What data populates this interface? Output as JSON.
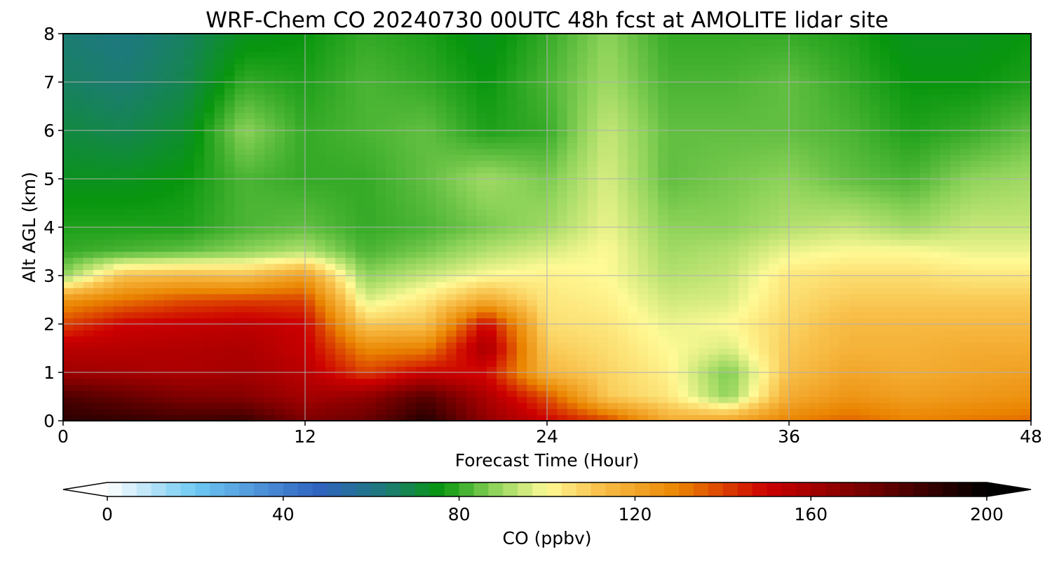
{
  "chart_data": {
    "type": "heatmap",
    "title": "WRF-Chem CO  20240730 00UTC 48h fcst at AMOLITE lidar site",
    "xlabel": "Forecast Time (Hour)",
    "ylabel": "Alt AGL (km)",
    "xlim": [
      0,
      48
    ],
    "ylim": [
      0,
      8
    ],
    "x_ticks": [
      "0",
      "12",
      "24",
      "36",
      "48"
    ],
    "y_ticks": [
      "0",
      "1",
      "2",
      "3",
      "4",
      "5",
      "6",
      "7",
      "8"
    ],
    "grid": true,
    "colorbar": {
      "label": "CO  (ppbv)",
      "range": [
        0,
        200
      ],
      "ticks": [
        "0",
        "40",
        "80",
        "120",
        "160",
        "200"
      ],
      "extend": "both",
      "stops": [
        {
          "v": 0,
          "color": "#ffffff"
        },
        {
          "v": 20,
          "color": "#6ec8f2"
        },
        {
          "v": 48,
          "color": "#2f62c0"
        },
        {
          "v": 63,
          "color": "#1d7a7a"
        },
        {
          "v": 76,
          "color": "#08960e"
        },
        {
          "v": 88,
          "color": "#8ed35a"
        },
        {
          "v": 100,
          "color": "#fffa96"
        },
        {
          "v": 112,
          "color": "#f8c04a"
        },
        {
          "v": 130,
          "color": "#ea8400"
        },
        {
          "v": 150,
          "color": "#cd0000"
        },
        {
          "v": 175,
          "color": "#6a0000"
        },
        {
          "v": 200,
          "color": "#000000"
        }
      ]
    },
    "x_hours": [
      0,
      3,
      6,
      9,
      12,
      15,
      18,
      21,
      24,
      27,
      30,
      33,
      36,
      39,
      42,
      45,
      48
    ],
    "altitudes_km": [
      0,
      0.5,
      1,
      1.5,
      2,
      2.5,
      3,
      3.5,
      4,
      5,
      6,
      7,
      8
    ],
    "co_ppbv": [
      [
        190,
        188,
        185,
        187,
        170,
        175,
        192,
        165,
        150,
        140,
        118,
        120,
        130,
        135,
        130,
        132,
        134
      ],
      [
        182,
        176,
        170,
        168,
        160,
        165,
        180,
        158,
        138,
        110,
        104,
        88,
        118,
        125,
        122,
        124,
        126
      ],
      [
        162,
        160,
        158,
        160,
        155,
        140,
        150,
        148,
        115,
        108,
        102,
        86,
        112,
        120,
        118,
        120,
        122
      ],
      [
        155,
        156,
        157,
        158,
        152,
        128,
        130,
        160,
        110,
        106,
        100,
        96,
        110,
        116,
        116,
        118,
        118
      ],
      [
        140,
        150,
        152,
        154,
        150,
        110,
        112,
        150,
        106,
        104,
        98,
        100,
        108,
        114,
        114,
        114,
        114
      ],
      [
        125,
        132,
        138,
        140,
        140,
        96,
        104,
        118,
        104,
        102,
        95,
        96,
        106,
        110,
        110,
        110,
        110
      ],
      [
        88,
        112,
        114,
        112,
        122,
        88,
        94,
        100,
        102,
        100,
        92,
        94,
        104,
        106,
        106,
        104,
        104
      ],
      [
        80,
        82,
        84,
        88,
        92,
        82,
        86,
        92,
        96,
        100,
        90,
        92,
        98,
        100,
        100,
        98,
        98
      ],
      [
        78,
        78,
        78,
        82,
        84,
        80,
        82,
        86,
        90,
        98,
        88,
        88,
        92,
        94,
        90,
        94,
        94
      ],
      [
        74,
        74,
        76,
        82,
        80,
        80,
        84,
        90,
        86,
        96,
        84,
        86,
        88,
        84,
        82,
        88,
        90
      ],
      [
        70,
        68,
        72,
        88,
        80,
        82,
        84,
        78,
        80,
        94,
        84,
        84,
        84,
        82,
        78,
        80,
        84
      ],
      [
        66,
        64,
        68,
        80,
        78,
        82,
        80,
        76,
        82,
        90,
        82,
        82,
        84,
        80,
        76,
        76,
        78
      ],
      [
        64,
        62,
        66,
        74,
        76,
        80,
        78,
        74,
        80,
        88,
        80,
        80,
        80,
        78,
        74,
        74,
        76
      ]
    ]
  }
}
